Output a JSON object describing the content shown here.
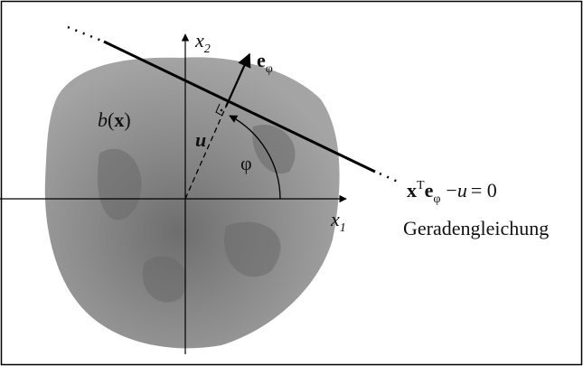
{
  "labels": {
    "x2": {
      "base": "x",
      "sub": "2"
    },
    "x1": {
      "base": "x",
      "sub": "1"
    },
    "e_phi": {
      "base": "e",
      "sub": "φ"
    },
    "b_x": {
      "func": "b",
      "open": "(",
      "arg": "x",
      "close": ")"
    },
    "u": "u",
    "phi": "φ",
    "equation": {
      "x": "x",
      "sup": "T",
      "e": "e",
      "sub": "φ",
      "minus": "−",
      "u": "u",
      "rest": "= 0"
    },
    "caption": "Geradengleichung"
  }
}
